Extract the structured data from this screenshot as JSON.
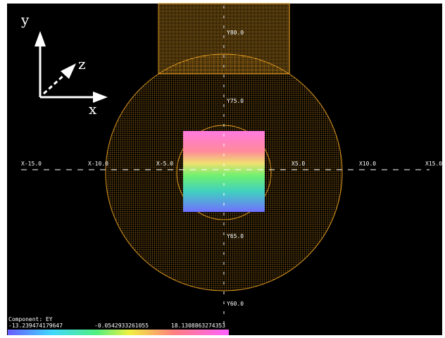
{
  "triad": {
    "x": "x",
    "y": "y",
    "z": "z"
  },
  "axis_labels": {
    "x": [
      "X-15.0",
      "X-10.0",
      "X-5.0",
      "X5.0",
      "X10.0",
      "X15.0"
    ],
    "y": [
      "Y80.0",
      "Y75.0",
      "Y65.0",
      "Y60.0"
    ]
  },
  "legend": {
    "component": "Component: EY",
    "min": "-13.239474179647",
    "mid": "-0.0542933261055",
    "max": "18.1308863274353"
  }
}
